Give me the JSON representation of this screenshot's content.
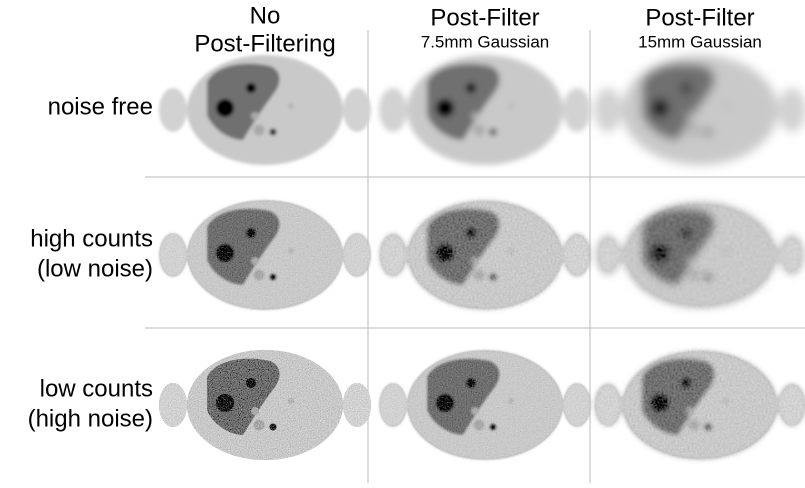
{
  "columns": [
    {
      "title": "No",
      "subtitle": "Post-Filtering"
    },
    {
      "title": "Post-Filter",
      "subtitle": "7.5mm Gaussian"
    },
    {
      "title": "Post-Filter",
      "subtitle": "15mm Gaussian"
    }
  ],
  "rows": [
    {
      "line1": "noise free"
    },
    {
      "line1": "high counts",
      "line2": "(low noise)"
    },
    {
      "line1": "low counts",
      "line2": "(high noise)"
    }
  ]
}
